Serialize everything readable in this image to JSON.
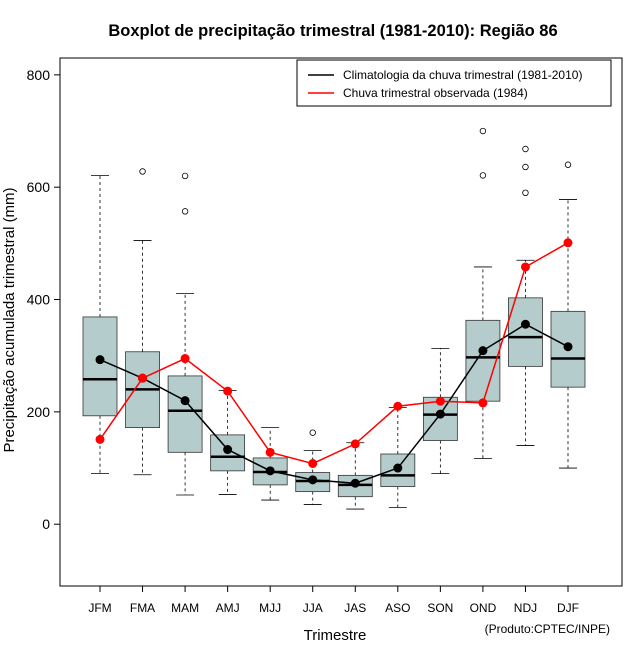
{
  "chart_data": {
    "type": "boxplot",
    "title": "Boxplot de precipitação trimestral (1981-2010): Região 86",
    "xlabel": "Trimestre",
    "ylabel": "Precipitação acumulada trimestral (mm)",
    "ylim": [
      -110,
      830
    ],
    "yticks": [
      0,
      200,
      400,
      600,
      800
    ],
    "ytick_labels": [
      "0",
      "200",
      "400",
      "600",
      "800"
    ],
    "categories": [
      "JFM",
      "FMA",
      "MAM",
      "AMJ",
      "MJJ",
      "JJA",
      "JAS",
      "ASO",
      "SON",
      "OND",
      "NDJ",
      "DJF"
    ],
    "box_fill": "#b4cccc",
    "boxes": [
      {
        "whisker_low": 90,
        "q1": 193,
        "median": 258,
        "q3": 369,
        "whisker_high": 621,
        "outliers": []
      },
      {
        "whisker_low": 88,
        "q1": 172,
        "median": 240,
        "q3": 307,
        "whisker_high": 505,
        "outliers": [
          628
        ]
      },
      {
        "whisker_low": 52,
        "q1": 128,
        "median": 202,
        "q3": 264,
        "whisker_high": 411,
        "outliers": [
          620,
          557
        ]
      },
      {
        "whisker_low": 53,
        "q1": 95,
        "median": 120,
        "q3": 159,
        "whisker_high": 238,
        "outliers": []
      },
      {
        "whisker_low": 43,
        "q1": 70,
        "median": 93,
        "q3": 118,
        "whisker_high": 172,
        "outliers": []
      },
      {
        "whisker_low": 35,
        "q1": 58,
        "median": 77,
        "q3": 92,
        "whisker_high": 131,
        "outliers": [
          163
        ]
      },
      {
        "whisker_low": 27,
        "q1": 49,
        "median": 70,
        "q3": 87,
        "whisker_high": 145,
        "outliers": []
      },
      {
        "whisker_low": 30,
        "q1": 67,
        "median": 87,
        "q3": 125,
        "whisker_high": 208,
        "outliers": []
      },
      {
        "whisker_low": 90,
        "q1": 149,
        "median": 195,
        "q3": 226,
        "whisker_high": 313,
        "outliers": []
      },
      {
        "whisker_low": 117,
        "q1": 219,
        "median": 297,
        "q3": 363,
        "whisker_high": 458,
        "outliers": [
          700,
          621
        ]
      },
      {
        "whisker_low": 140,
        "q1": 281,
        "median": 333,
        "q3": 403,
        "whisker_high": 470,
        "outliers": [
          668,
          636,
          590
        ]
      },
      {
        "whisker_low": 100,
        "q1": 244,
        "median": 295,
        "q3": 379,
        "whisker_high": 578,
        "outliers": [
          640
        ]
      }
    ],
    "series": [
      {
        "name": "Climatologia da chuva trimestral (1981-2010)",
        "color": "#000000",
        "values": [
          293,
          260,
          220,
          133,
          95,
          79,
          73,
          100,
          196,
          309,
          356,
          316
        ]
      },
      {
        "name": "Chuva trimestral observada (1984)",
        "color": "#ff0000",
        "values": [
          151,
          260,
          295,
          237,
          128,
          108,
          143,
          210,
          219,
          216,
          458,
          501
        ]
      }
    ],
    "legend_position": "top-right",
    "caption": "(Produto:CPTEC/INPE)"
  }
}
